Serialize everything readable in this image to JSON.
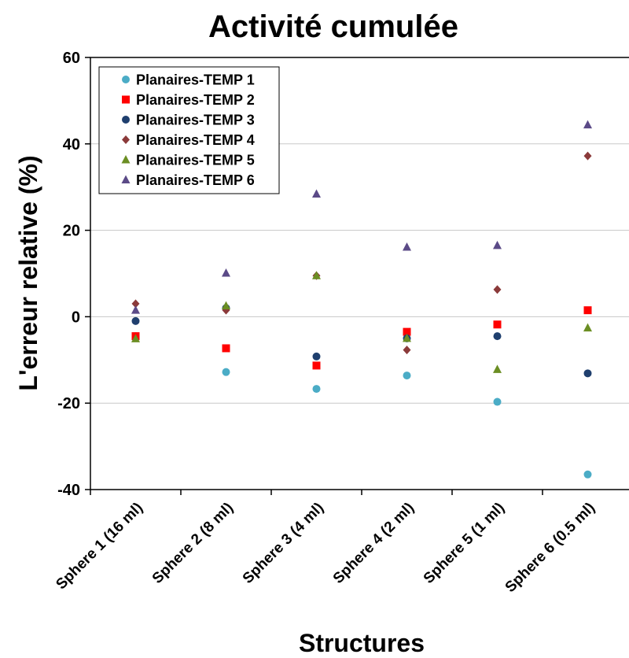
{
  "chart_data": {
    "type": "scatter",
    "title": "Activité cumulée",
    "xlabel": "Structures",
    "ylabel": "L'erreur relative (%)",
    "categories": [
      "Sphere 1 (16 ml)",
      "Sphere 2 (8 ml)",
      "Sphere 3 (4 ml)",
      "Sphere 4 (2 ml)",
      "Sphere 5 (1 ml)",
      "Sphere 6 (0.5 ml)"
    ],
    "ylim": [
      -40,
      60
    ],
    "yticks": [
      "60",
      "40",
      "20",
      "0",
      "-20",
      "-40"
    ],
    "ytick_values": [
      60,
      40,
      20,
      0,
      -20,
      -40
    ],
    "grid": true,
    "legend_position": "top-left",
    "series": [
      {
        "name": "Planaires-TEMP 1",
        "marker": "circle",
        "color": "#4bacc6",
        "values": [
          -4.5,
          -12.8,
          -16.7,
          -13.6,
          -19.7,
          -36.5
        ]
      },
      {
        "name": "Planaires-TEMP 2",
        "marker": "square",
        "color": "#ff0000",
        "values": [
          -4.5,
          -7.3,
          -11.3,
          -3.5,
          -1.8,
          1.5
        ]
      },
      {
        "name": "Planaires-TEMP 3",
        "marker": "circle",
        "color": "#1f3f6e",
        "values": [
          -1.0,
          2.0,
          -9.2,
          -5.0,
          -4.5,
          -13.1
        ]
      },
      {
        "name": "Planaires-TEMP 4",
        "marker": "diamond",
        "color": "#8b3a3a",
        "values": [
          3.0,
          1.5,
          9.5,
          -7.7,
          6.3,
          37.2
        ]
      },
      {
        "name": "Planaires-TEMP 5",
        "marker": "triangle",
        "color": "#6b8e23",
        "values": [
          -5.1,
          2.5,
          9.5,
          -5.0,
          -12.2,
          -2.6
        ]
      },
      {
        "name": "Planaires-TEMP 6",
        "marker": "triangle",
        "color": "#5b4a87",
        "values": [
          1.5,
          10.1,
          28.4,
          16.1,
          16.5,
          44.4
        ]
      }
    ]
  }
}
